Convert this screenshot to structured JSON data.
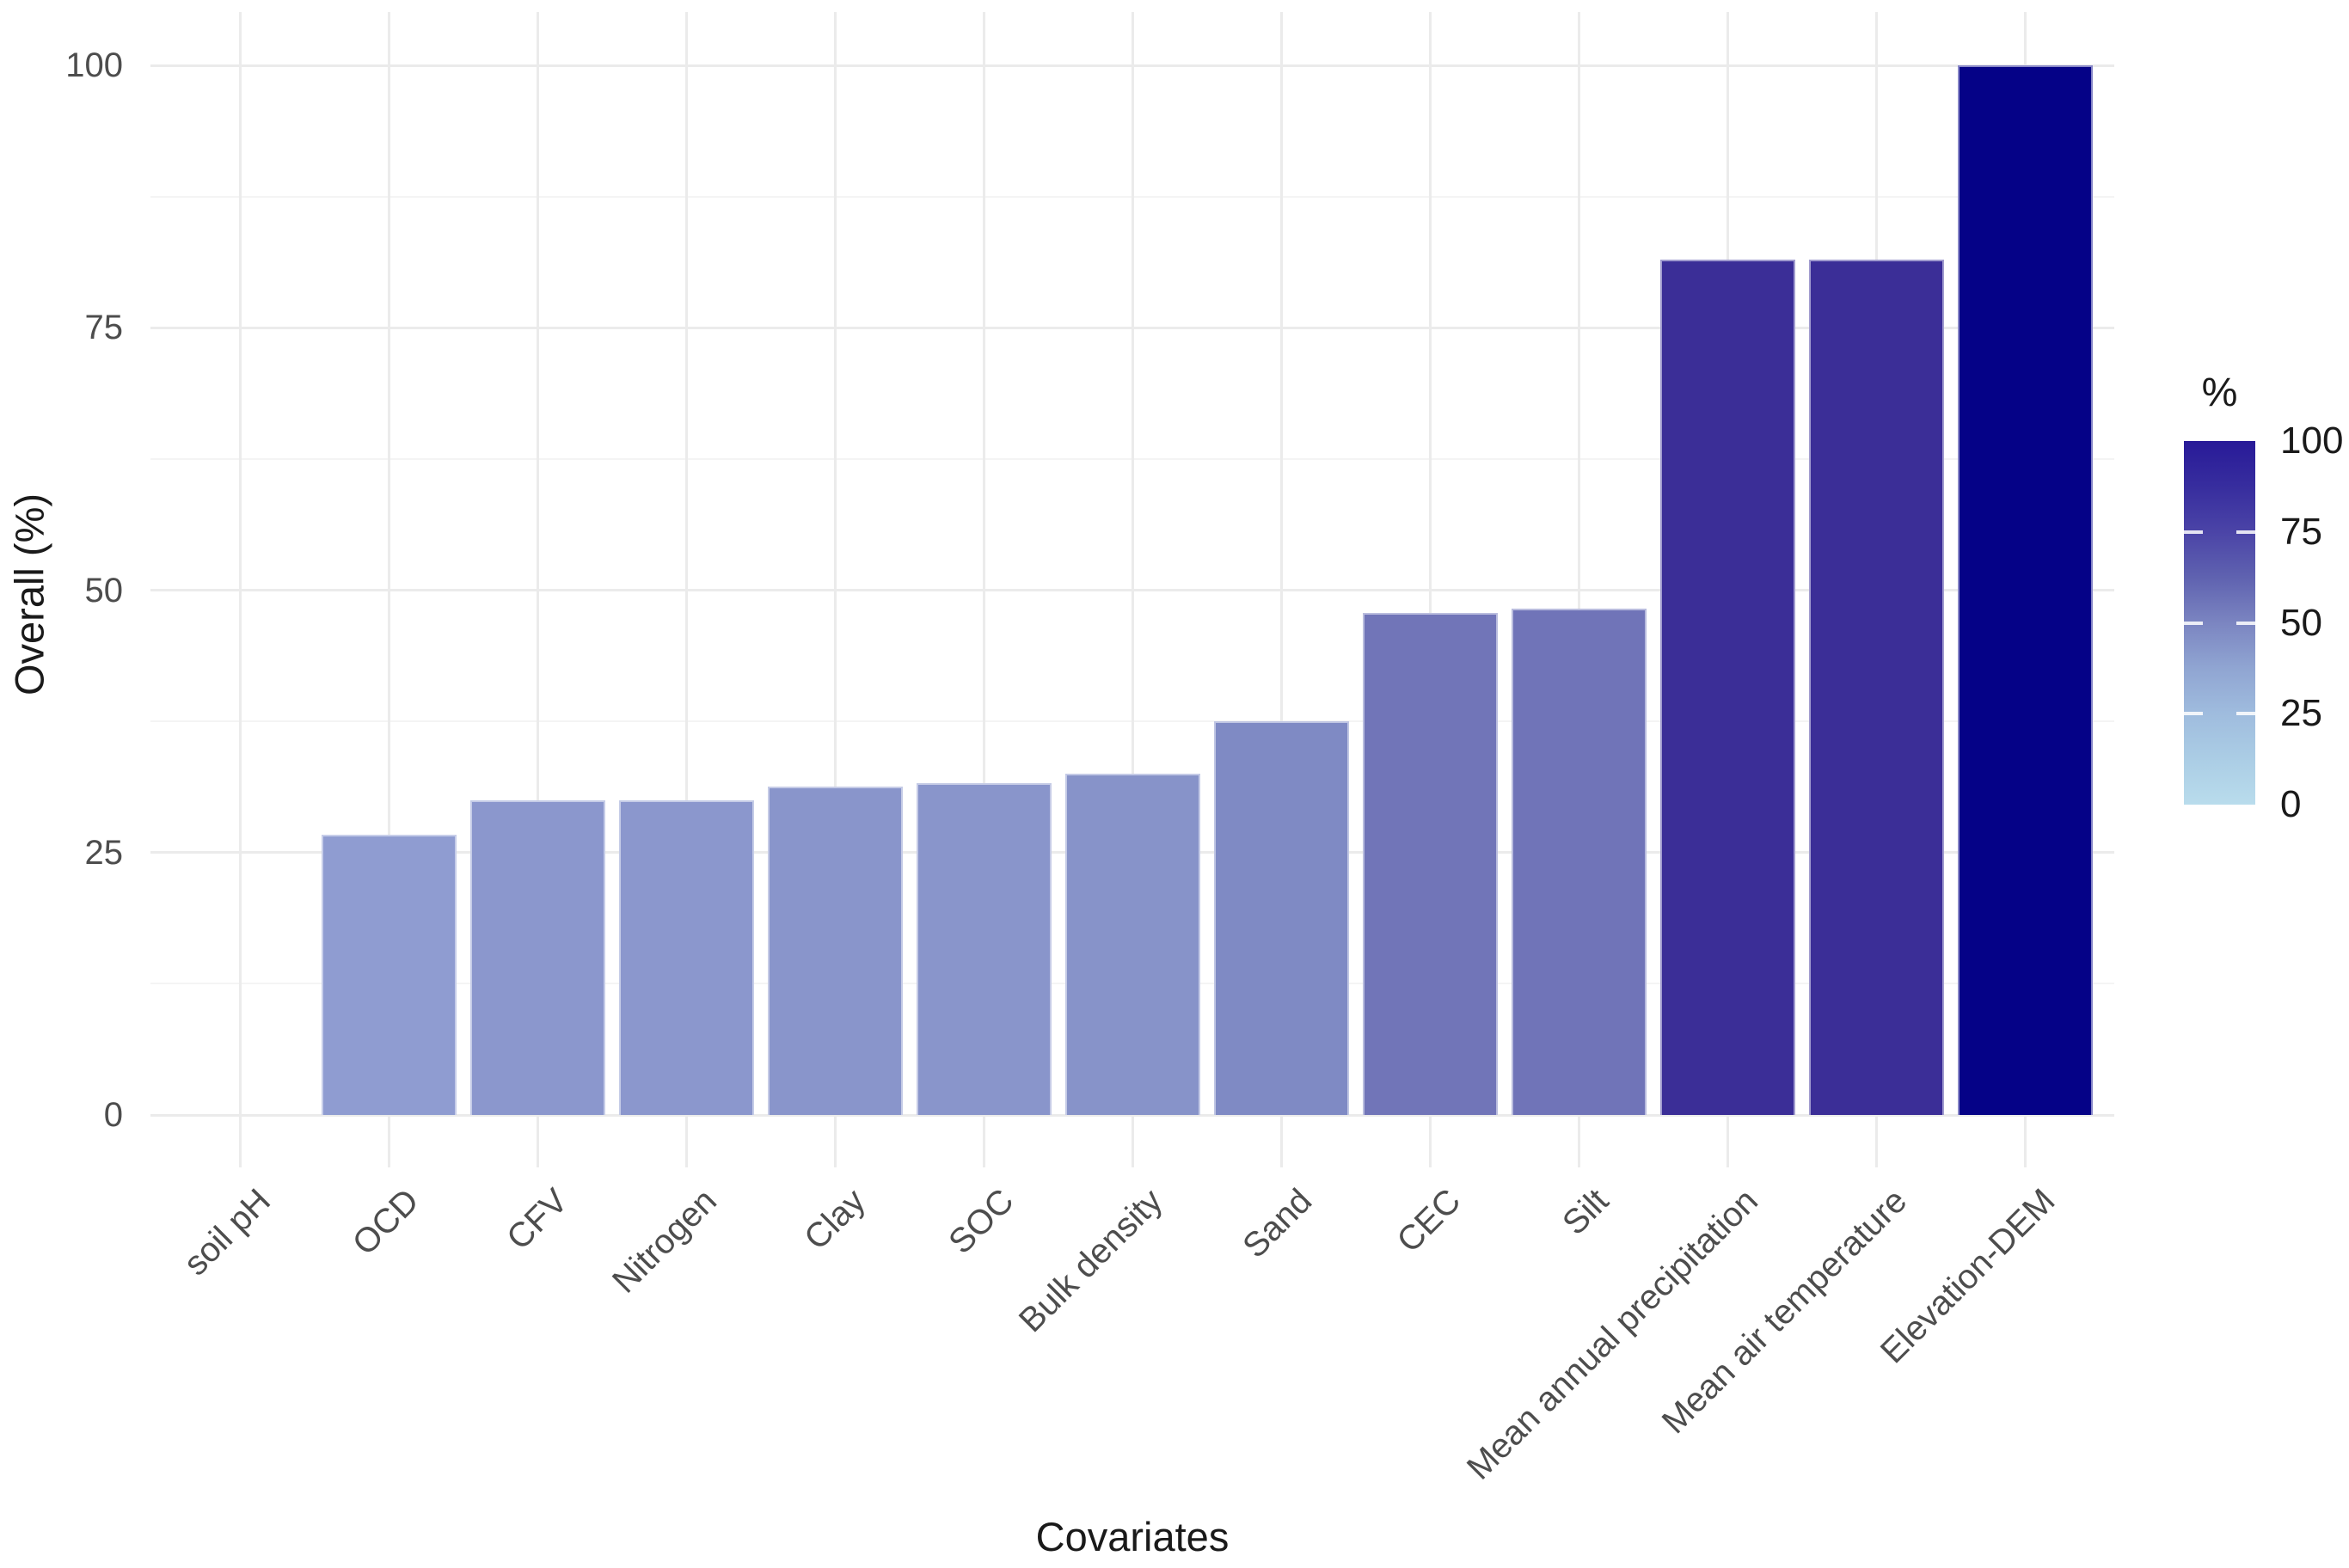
{
  "figure": {
    "background": "#FFFFFF"
  },
  "style": {
    "axis_text_color": "#4D4D4D",
    "axis_title_color": "#1A1A1A",
    "legend_text_color": "#1A1A1A",
    "grid_major_color": "#EBEBEB",
    "grid_minor_color": "#F4F4F4"
  },
  "chart_data": {
    "type": "bar",
    "title": "",
    "xlabel": "Covariates",
    "ylabel": "Overall (%)",
    "categories": [
      "soil pH",
      "OCD",
      "CFV",
      "Nitrogen",
      "Clay",
      "SOC",
      "Bulk density",
      "Sand",
      "CEC",
      "Silt",
      "Mean annual precipitation",
      "Mean air temperature",
      "Elevation-DEM"
    ],
    "values": [
      0,
      26.7,
      30,
      30,
      31.3,
      31.6,
      32.5,
      37.5,
      47.8,
      48.2,
      81.5,
      81.5,
      100
    ],
    "bar_colors": [
      "#8F9CD1",
      "#8F9CD1",
      "#8B97CD",
      "#8B97CD",
      "#8995CB",
      "#8995CB",
      "#8793C9",
      "#7F8AC4",
      "#7175B8",
      "#7074B8",
      "#3B2E97",
      "#3B2E97",
      "#050287"
    ],
    "ylim": [
      0,
      100
    ],
    "yticks": [
      0,
      25,
      50,
      75,
      100
    ],
    "yticks_minor": [
      12.5,
      37.5,
      62.5,
      87.5
    ],
    "grid": "major+minor",
    "legend": {
      "position": "right",
      "title": "%",
      "ticks": [
        0,
        25,
        50,
        75,
        100
      ],
      "tick_marks": [
        25,
        50,
        75
      ],
      "gradient_stops": [
        {
          "value": 0,
          "color": "#B9DCEC"
        },
        {
          "value": 12.5,
          "color": "#ABCDE5"
        },
        {
          "value": 25,
          "color": "#9FBCDE"
        },
        {
          "value": 37.5,
          "color": "#90A5D2"
        },
        {
          "value": 50,
          "color": "#7B85C1"
        },
        {
          "value": 62.5,
          "color": "#5F62B0"
        },
        {
          "value": 75,
          "color": "#4B44A7"
        },
        {
          "value": 87.5,
          "color": "#372D9E"
        },
        {
          "value": 100,
          "color": "#281A98"
        }
      ]
    }
  }
}
